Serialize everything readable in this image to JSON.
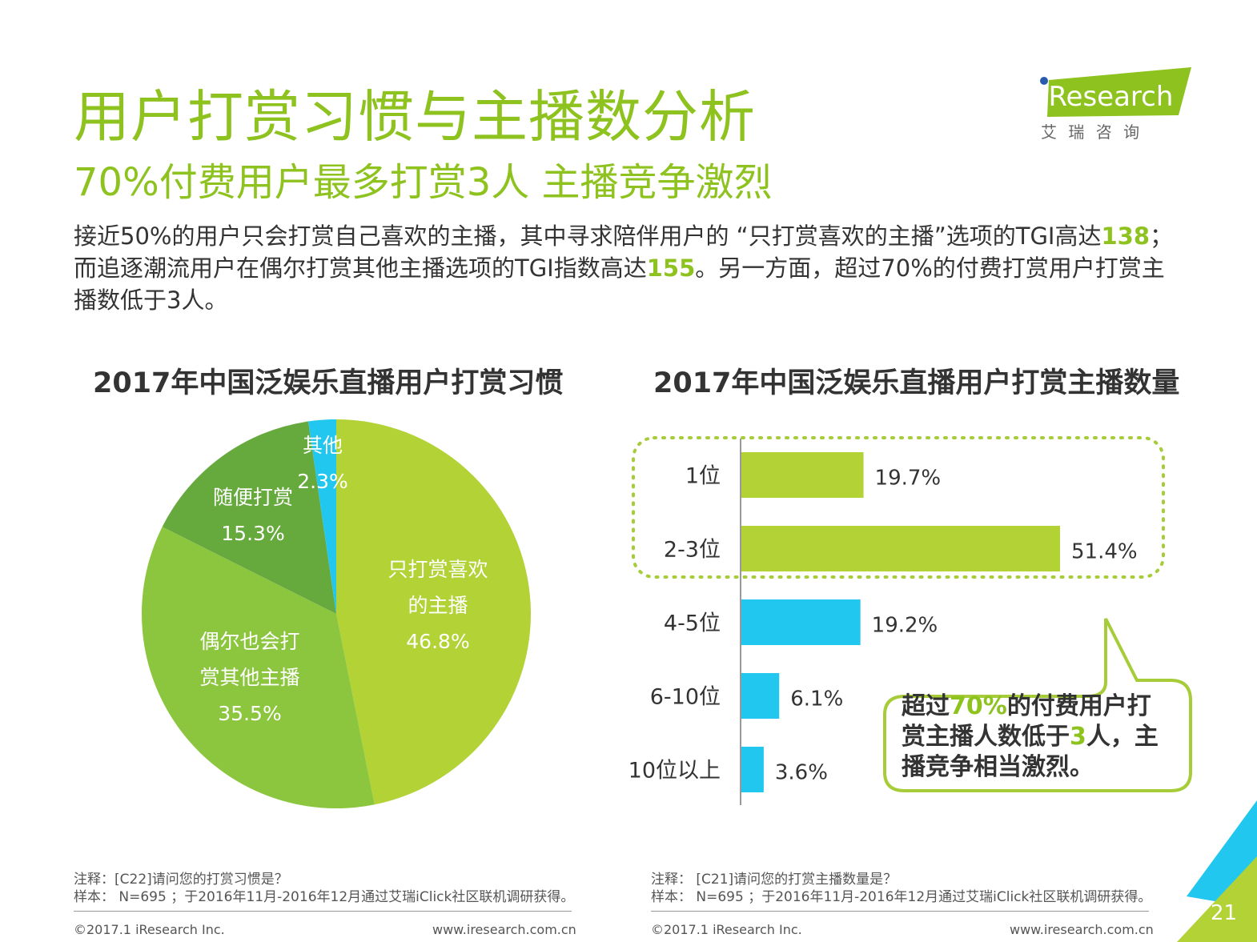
{
  "header": {
    "title": "用户打赏习惯与主播数分析",
    "subtitle": "70%付费用户最多打赏3人 主播竞争激烈",
    "logo_text": "iResearch",
    "logo_sub": "艾 瑞 咨 询"
  },
  "description": {
    "part1": "接近50%的用户只会打赏自己喜欢的主播，其中寻求陪伴用户的 “只打赏喜欢的主播”选项的TGI高达",
    "hl1": "138",
    "part2": "；而追逐潮流用户在偶尔打赏其他主播选项的TGI指数高达",
    "hl2": "155",
    "part3": "。另一方面，超过70%的付费打赏用户打赏主播数低于3人。"
  },
  "chart_data": [
    {
      "type": "pie",
      "title": "2017年中国泛娱乐直播用户打赏习惯",
      "slices": [
        {
          "label_lines": [
            "只打赏喜欢",
            "的主播"
          ],
          "value": 46.8,
          "value_label": "46.8%",
          "color": "#b2d235"
        },
        {
          "label_lines": [
            "偶尔也会打",
            "赏其他主播"
          ],
          "value": 35.5,
          "value_label": "35.5%",
          "color": "#8cc63f"
        },
        {
          "label_lines": [
            "随便打赏"
          ],
          "value": 15.3,
          "value_label": "15.3%",
          "color": "#66aa3e"
        },
        {
          "label_lines": [
            "其他"
          ],
          "value": 2.3,
          "value_label": "2.3%",
          "color": "#22c7f0"
        }
      ]
    },
    {
      "type": "bar",
      "orientation": "horizontal",
      "title": "2017年中国泛娱乐直播用户打赏主播数量",
      "categories": [
        "1位",
        "2-3位",
        "4-5位",
        "6-10位",
        "10位以上"
      ],
      "values": [
        19.7,
        51.4,
        19.2,
        6.1,
        3.6
      ],
      "value_labels": [
        "19.7%",
        "51.4%",
        "19.2%",
        "6.1%",
        "3.6%"
      ],
      "colors": [
        "#b2d235",
        "#b2d235",
        "#22c7f0",
        "#22c7f0",
        "#22c7f0"
      ],
      "xlim": [
        0,
        55
      ],
      "callout": {
        "line1_a": "超过",
        "line1_hl": "70%",
        "line1_b": "的付费用户打",
        "line2_a": "赏主播人数低于",
        "line2_hl": "3",
        "line2_b": "人，主",
        "line3": "播竞争相当激烈。"
      }
    }
  ],
  "notes": {
    "left_note": "注释：[C22]请问您的打赏习惯是？",
    "left_sample": "样本： N=695 ；于2016年11月-2016年12月通过艾瑞iClick社区联机调研获得。",
    "right_note": "注释： [C21]请问您的打赏主播数量是？",
    "right_sample": "样本： N=695 ；于2016年11月-2016年12月通过艾瑞iClick社区联机调研获得。"
  },
  "footer": {
    "copyright": "©2017.1 iResearch Inc.",
    "url": "www.iresearch.com.cn",
    "page_number": "21"
  },
  "colors": {
    "brand_green": "#8dc21f",
    "accent_blue": "#22c7f0",
    "text_dark": "#333333"
  }
}
